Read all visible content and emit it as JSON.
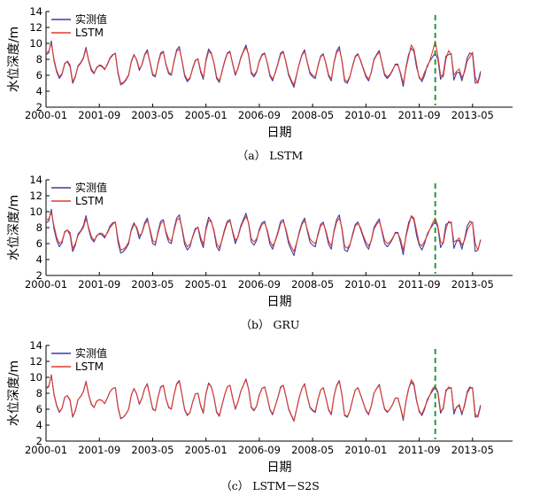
{
  "colors": {
    "observed": "#3b3ba8",
    "predicted": "#e03b2b",
    "split_line": "#1e9a3a",
    "axis": "#000000"
  },
  "chart_data": [
    {
      "type": "line",
      "caption": "（a） LSTM",
      "xlabel": "日期",
      "ylabel": "水位深度/m",
      "ylim": [
        2,
        14
      ],
      "yticks": [
        2,
        4,
        6,
        8,
        10,
        12,
        14
      ],
      "xticks": [
        "2000-01",
        "2001-09",
        "2003-05",
        "2005-01",
        "2006-09",
        "2008-05",
        "2010-01",
        "2011-09",
        "2013-05"
      ],
      "x_start": "2000-01",
      "x_end": "2014-08",
      "split_at": "2012-03",
      "grid": false,
      "legend_position": "top-left",
      "series": [
        {
          "name": "实测值",
          "values": [
            8.6,
            8.8,
            10.3,
            7.8,
            6.4,
            5.6,
            6.1,
            7.5,
            7.7,
            7.1,
            5.0,
            5.8,
            7.2,
            7.6,
            8.2,
            9.5,
            7.8,
            6.6,
            6.2,
            7.0,
            7.2,
            7.1,
            6.7,
            7.4,
            8.2,
            8.6,
            8.7,
            6.2,
            4.8,
            5.0,
            5.4,
            6.0,
            7.8,
            8.6,
            7.9,
            6.6,
            7.4,
            8.6,
            9.2,
            7.6,
            6.0,
            5.8,
            7.5,
            8.8,
            9.0,
            7.3,
            6.2,
            6.0,
            7.8,
            9.2,
            9.6,
            7.8,
            5.9,
            5.2,
            5.6,
            6.9,
            7.9,
            8.0,
            6.4,
            5.5,
            8.0,
            9.3,
            8.8,
            7.5,
            5.6,
            5.1,
            6.5,
            7.8,
            8.8,
            9.0,
            7.4,
            6.0,
            6.9,
            8.2,
            9.0,
            9.8,
            8.5,
            6.2,
            5.8,
            6.4,
            7.8,
            8.6,
            8.8,
            7.5,
            5.9,
            5.3,
            6.4,
            7.5,
            8.8,
            9.0,
            7.6,
            6.0,
            5.2,
            4.5,
            6.0,
            7.5,
            8.6,
            9.2,
            7.6,
            6.2,
            5.8,
            5.6,
            7.2,
            8.4,
            8.7,
            7.4,
            5.9,
            5.3,
            7.6,
            9.0,
            9.6,
            7.8,
            5.2,
            5.0,
            5.8,
            7.2,
            8.4,
            8.7,
            7.8,
            6.8,
            5.8,
            5.3,
            6.4,
            8.0,
            8.6,
            9.1,
            7.5,
            6.0,
            5.6,
            6.0,
            6.6,
            7.4,
            7.4,
            6.1,
            4.6,
            7.0,
            8.6,
            9.4,
            9.0,
            7.0,
            5.8,
            5.2,
            6.0,
            7.2,
            7.8,
            8.3,
            8.8,
            8.0,
            5.5,
            6.2,
            8.4,
            8.6,
            8.7,
            5.4,
            6.3,
            6.4,
            5.3,
            6.6,
            8.2,
            8.8,
            8.6,
            5.0,
            5.2,
            6.5
          ]
        },
        {
          "name": "LSTM",
          "values": [
            8.8,
            9.0,
            10.0,
            8.0,
            6.6,
            5.8,
            6.2,
            7.4,
            7.8,
            7.3,
            5.2,
            5.9,
            7.1,
            7.5,
            8.1,
            9.3,
            7.9,
            6.8,
            6.3,
            6.9,
            7.3,
            7.2,
            6.8,
            7.3,
            8.1,
            8.5,
            8.8,
            6.4,
            5.0,
            5.1,
            5.5,
            6.1,
            7.7,
            8.5,
            8.0,
            6.8,
            7.3,
            8.5,
            9.0,
            7.7,
            6.2,
            5.9,
            7.4,
            8.6,
            8.9,
            7.4,
            6.4,
            6.1,
            7.7,
            9.0,
            9.3,
            7.9,
            6.1,
            5.4,
            5.7,
            6.8,
            7.8,
            8.1,
            6.6,
            5.7,
            7.8,
            9.0,
            8.7,
            7.6,
            5.8,
            5.3,
            6.4,
            7.7,
            8.7,
            8.9,
            7.5,
            6.2,
            6.8,
            8.1,
            8.9,
            9.5,
            8.6,
            6.4,
            6.0,
            6.5,
            7.7,
            8.5,
            8.7,
            7.6,
            6.1,
            5.5,
            6.3,
            7.4,
            8.6,
            8.9,
            7.7,
            6.2,
            5.4,
            4.8,
            6.1,
            7.4,
            8.5,
            9.0,
            7.7,
            6.4,
            6.0,
            5.8,
            7.1,
            8.3,
            8.6,
            7.5,
            6.1,
            5.5,
            7.5,
            8.8,
            9.3,
            7.9,
            5.5,
            5.2,
            5.9,
            7.1,
            8.3,
            8.6,
            7.9,
            6.9,
            6.0,
            5.5,
            6.3,
            7.9,
            8.5,
            8.9,
            7.6,
            6.2,
            5.8,
            6.1,
            6.7,
            7.3,
            7.3,
            6.3,
            5.0,
            6.8,
            8.3,
            9.8,
            9.3,
            7.4,
            5.6,
            5.5,
            6.4,
            7.0,
            7.9,
            9.0,
            10.3,
            8.4,
            6.0,
            5.8,
            8.0,
            9.1,
            8.6,
            6.0,
            6.5,
            6.8,
            5.7,
            6.4,
            7.8,
            8.3,
            8.9,
            5.8,
            5.0,
            6.2
          ]
        }
      ]
    },
    {
      "type": "line",
      "caption": "（b） GRU",
      "xlabel": "日期",
      "ylabel": "水位深度/m",
      "ylim": [
        2,
        14
      ],
      "yticks": [
        2,
        4,
        6,
        8,
        10,
        12,
        14
      ],
      "xticks": [
        "2000-01",
        "2001-09",
        "2003-05",
        "2005-01",
        "2006-09",
        "2008-05",
        "2010-01",
        "2011-09",
        "2013-05"
      ],
      "x_start": "2000-01",
      "x_end": "2014-08",
      "split_at": "2012-03",
      "grid": false,
      "legend_position": "top-left",
      "series": [
        {
          "name": "实测值",
          "values": [
            8.6,
            8.8,
            10.3,
            7.8,
            6.4,
            5.6,
            6.1,
            7.5,
            7.7,
            7.1,
            5.0,
            5.8,
            7.2,
            7.6,
            8.2,
            9.5,
            7.8,
            6.6,
            6.2,
            7.0,
            7.2,
            7.1,
            6.7,
            7.4,
            8.2,
            8.6,
            8.7,
            6.2,
            4.8,
            5.0,
            5.4,
            6.0,
            7.8,
            8.6,
            7.9,
            6.6,
            7.4,
            8.6,
            9.2,
            7.6,
            6.0,
            5.8,
            7.5,
            8.8,
            9.0,
            7.3,
            6.2,
            6.0,
            7.8,
            9.2,
            9.6,
            7.8,
            5.9,
            5.2,
            5.6,
            6.9,
            7.9,
            8.0,
            6.4,
            5.5,
            8.0,
            9.3,
            8.8,
            7.5,
            5.6,
            5.1,
            6.5,
            7.8,
            8.8,
            9.0,
            7.4,
            6.0,
            6.9,
            8.2,
            9.0,
            9.8,
            8.5,
            6.2,
            5.8,
            6.4,
            7.8,
            8.6,
            8.8,
            7.5,
            5.9,
            5.3,
            6.4,
            7.5,
            8.8,
            9.0,
            7.6,
            6.0,
            5.2,
            4.5,
            6.0,
            7.5,
            8.6,
            9.2,
            7.6,
            6.2,
            5.8,
            5.6,
            7.2,
            8.4,
            8.7,
            7.4,
            5.9,
            5.3,
            7.6,
            9.0,
            9.6,
            7.8,
            5.2,
            5.0,
            5.8,
            7.2,
            8.4,
            8.7,
            7.8,
            6.8,
            5.8,
            5.3,
            6.4,
            8.0,
            8.6,
            9.1,
            7.5,
            6.0,
            5.6,
            6.0,
            6.6,
            7.4,
            7.4,
            6.1,
            4.6,
            7.0,
            8.6,
            9.4,
            9.0,
            7.0,
            5.8,
            5.2,
            6.0,
            7.2,
            7.8,
            8.3,
            8.8,
            8.0,
            5.5,
            6.2,
            8.4,
            8.6,
            8.7,
            5.4,
            6.3,
            6.4,
            5.3,
            6.6,
            8.2,
            8.8,
            8.6,
            5.0,
            5.2,
            6.5
          ]
        },
        {
          "name": "LSTM",
          "values": [
            8.9,
            9.1,
            9.9,
            8.2,
            6.8,
            6.0,
            6.3,
            7.4,
            7.7,
            7.4,
            5.4,
            6.0,
            7.0,
            7.5,
            8.0,
            9.1,
            8.0,
            6.9,
            6.4,
            6.9,
            7.3,
            7.3,
            6.9,
            7.3,
            8.0,
            8.4,
            8.7,
            6.6,
            5.2,
            5.3,
            5.6,
            6.2,
            7.6,
            8.4,
            8.1,
            7.0,
            7.3,
            8.4,
            8.9,
            7.8,
            6.4,
            6.1,
            7.3,
            8.5,
            8.8,
            7.5,
            6.6,
            6.3,
            7.6,
            8.9,
            9.2,
            8.0,
            6.3,
            5.6,
            5.9,
            6.8,
            7.7,
            8.1,
            6.8,
            5.9,
            7.7,
            8.9,
            8.7,
            7.7,
            6.0,
            5.5,
            6.4,
            7.6,
            8.6,
            8.8,
            7.6,
            6.4,
            6.8,
            8.0,
            8.8,
            9.4,
            8.6,
            6.6,
            6.2,
            6.6,
            7.6,
            8.4,
            8.6,
            7.7,
            6.3,
            5.7,
            6.3,
            7.3,
            8.5,
            8.8,
            7.8,
            6.4,
            5.6,
            5.0,
            6.1,
            7.3,
            8.4,
            8.9,
            7.8,
            6.6,
            6.2,
            6.0,
            7.0,
            8.2,
            8.5,
            7.6,
            6.3,
            5.7,
            7.4,
            8.7,
            9.2,
            8.0,
            5.7,
            5.4,
            5.9,
            7.0,
            8.2,
            8.5,
            8.0,
            7.0,
            6.2,
            5.7,
            6.3,
            7.8,
            8.4,
            8.8,
            7.7,
            6.4,
            6.0,
            6.2,
            6.7,
            7.3,
            7.3,
            6.5,
            5.2,
            6.8,
            8.2,
            9.5,
            9.2,
            7.6,
            6.0,
            5.7,
            6.3,
            7.0,
            7.8,
            8.6,
            9.2,
            8.2,
            6.2,
            6.0,
            7.8,
            8.8,
            8.5,
            6.2,
            6.4,
            6.7,
            5.8,
            6.4,
            7.7,
            8.3,
            8.7,
            6.0,
            5.2,
            6.4
          ]
        }
      ]
    },
    {
      "type": "line",
      "caption": "（c） LSTM－S2S",
      "xlabel": "日期",
      "ylabel": "水位深度/m",
      "ylim": [
        2,
        14
      ],
      "yticks": [
        2,
        4,
        6,
        8,
        10,
        12,
        14
      ],
      "xticks": [
        "2000-01",
        "2001-09",
        "2003-05",
        "2005-01",
        "2006-09",
        "2008-05",
        "2010-01",
        "2011-09",
        "2013-05"
      ],
      "x_start": "2000-01",
      "x_end": "2014-08",
      "split_at": "2012-03",
      "grid": false,
      "legend_position": "top-left",
      "series": [
        {
          "name": "实测值",
          "values": [
            8.6,
            8.8,
            10.3,
            7.8,
            6.4,
            5.6,
            6.1,
            7.5,
            7.7,
            7.1,
            5.0,
            5.8,
            7.2,
            7.6,
            8.2,
            9.5,
            7.8,
            6.6,
            6.2,
            7.0,
            7.2,
            7.1,
            6.7,
            7.4,
            8.2,
            8.6,
            8.7,
            6.2,
            4.8,
            5.0,
            5.4,
            6.0,
            7.8,
            8.6,
            7.9,
            6.6,
            7.4,
            8.6,
            9.2,
            7.6,
            6.0,
            5.8,
            7.5,
            8.8,
            9.0,
            7.3,
            6.2,
            6.0,
            7.8,
            9.2,
            9.6,
            7.8,
            5.9,
            5.2,
            5.6,
            6.9,
            7.9,
            8.0,
            6.4,
            5.5,
            8.0,
            9.3,
            8.8,
            7.5,
            5.6,
            5.1,
            6.5,
            7.8,
            8.8,
            9.0,
            7.4,
            6.0,
            6.9,
            8.2,
            9.0,
            9.8,
            8.5,
            6.2,
            5.8,
            6.4,
            7.8,
            8.6,
            8.8,
            7.5,
            5.9,
            5.3,
            6.4,
            7.5,
            8.8,
            9.0,
            7.6,
            6.0,
            5.2,
            4.5,
            6.0,
            7.5,
            8.6,
            9.2,
            7.6,
            6.2,
            5.8,
            5.6,
            7.2,
            8.4,
            8.7,
            7.4,
            5.9,
            5.3,
            7.6,
            9.0,
            9.6,
            7.8,
            5.2,
            5.0,
            5.8,
            7.2,
            8.4,
            8.7,
            7.8,
            6.8,
            5.8,
            5.3,
            6.4,
            8.0,
            8.6,
            9.1,
            7.5,
            6.0,
            5.6,
            6.0,
            6.6,
            7.4,
            7.4,
            6.1,
            4.6,
            7.0,
            8.6,
            9.4,
            9.0,
            7.0,
            5.8,
            5.2,
            6.0,
            7.2,
            7.8,
            8.3,
            8.8,
            8.0,
            5.5,
            6.2,
            8.4,
            8.6,
            8.7,
            5.4,
            6.3,
            6.4,
            5.3,
            6.6,
            8.2,
            8.8,
            8.6,
            5.0,
            5.2,
            6.5
          ]
        },
        {
          "name": "LSTM",
          "values": [
            8.7,
            8.9,
            10.2,
            7.9,
            6.5,
            5.7,
            6.1,
            7.5,
            7.7,
            7.2,
            5.1,
            5.8,
            7.2,
            7.6,
            8.2,
            9.4,
            7.8,
            6.7,
            6.2,
            7.0,
            7.2,
            7.1,
            6.7,
            7.4,
            8.2,
            8.6,
            8.7,
            6.3,
            4.9,
            5.0,
            5.4,
            6.0,
            7.8,
            8.6,
            7.9,
            6.7,
            7.4,
            8.6,
            9.1,
            7.6,
            6.1,
            5.8,
            7.5,
            8.7,
            9.0,
            7.3,
            6.3,
            6.0,
            7.8,
            9.1,
            9.5,
            7.8,
            6.0,
            5.3,
            5.6,
            6.9,
            7.9,
            8.0,
            6.5,
            5.6,
            7.9,
            9.2,
            8.8,
            7.5,
            5.7,
            5.2,
            6.5,
            7.8,
            8.8,
            9.0,
            7.4,
            6.1,
            6.9,
            8.2,
            9.0,
            9.7,
            8.5,
            6.3,
            5.9,
            6.4,
            7.8,
            8.6,
            8.8,
            7.5,
            6.0,
            5.4,
            6.4,
            7.5,
            8.7,
            9.0,
            7.6,
            6.1,
            5.3,
            4.6,
            6.0,
            7.5,
            8.6,
            9.1,
            7.6,
            6.3,
            5.9,
            5.7,
            7.2,
            8.4,
            8.7,
            7.4,
            6.0,
            5.4,
            7.6,
            8.9,
            9.5,
            7.8,
            5.3,
            5.1,
            5.8,
            7.2,
            8.4,
            8.7,
            7.8,
            6.8,
            5.9,
            5.4,
            6.4,
            8.0,
            8.6,
            9.0,
            7.5,
            6.1,
            5.7,
            6.0,
            6.6,
            7.4,
            7.4,
            6.2,
            4.8,
            6.9,
            8.5,
            9.7,
            9.2,
            7.2,
            5.6,
            5.4,
            6.2,
            7.0,
            7.8,
            8.6,
            8.9,
            8.2,
            5.8,
            6.0,
            8.2,
            8.8,
            8.6,
            5.8,
            6.2,
            6.6,
            5.5,
            6.4,
            8.0,
            8.6,
            8.7,
            5.4,
            5.0,
            6.3
          ]
        }
      ]
    }
  ]
}
